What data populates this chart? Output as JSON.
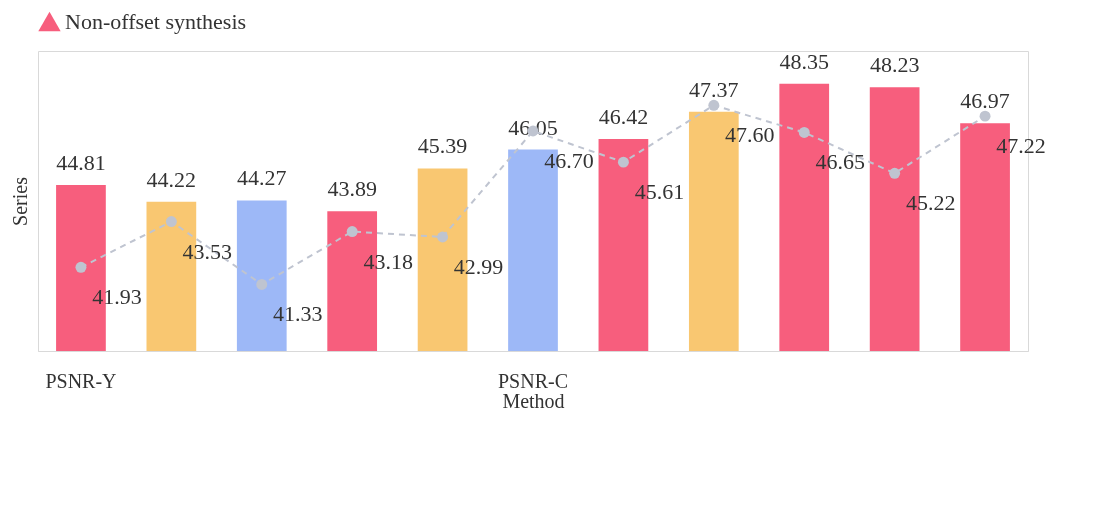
{
  "chart_data": {
    "type": "bar",
    "xlabel": "Method",
    "ylabel": "Series",
    "categories": [
      "PSNR-Y",
      null,
      null,
      null,
      null,
      "PSNR-C",
      null,
      null,
      null,
      null,
      null
    ],
    "series": [
      {
        "name": "Non-offset synthesis",
        "colors": [
          "#f75e7d",
          "#f9c771",
          "#9db8f7",
          "#f75e7d",
          "#f9c771",
          "#9db8f7",
          "#f75e7d",
          "#f9c771",
          "#f75e7d",
          "#f75e7d",
          "#f75e7d"
        ],
        "values": [
          44.81,
          44.22,
          44.27,
          43.89,
          45.39,
          46.05,
          46.42,
          47.37,
          48.35,
          48.23,
          46.97
        ]
      },
      {
        "type": "line",
        "color": "#bfc4d0",
        "values": [
          41.93,
          43.53,
          41.33,
          43.18,
          42.99,
          46.7,
          45.61,
          47.6,
          46.65,
          45.22,
          47.22
        ],
        "value_labels": [
          "41.93",
          "43.53",
          "41.33",
          "43.18",
          "42.99",
          "46.70",
          "45.61",
          "47.60",
          "46.65",
          "45.22",
          "47.22"
        ],
        "marker": "circle",
        "line_style": "dashed"
      }
    ],
    "ylim": [
      39,
      49.5
    ],
    "data_labels": true,
    "legend": "top",
    "tick_labels": "x",
    "grid": false
  }
}
